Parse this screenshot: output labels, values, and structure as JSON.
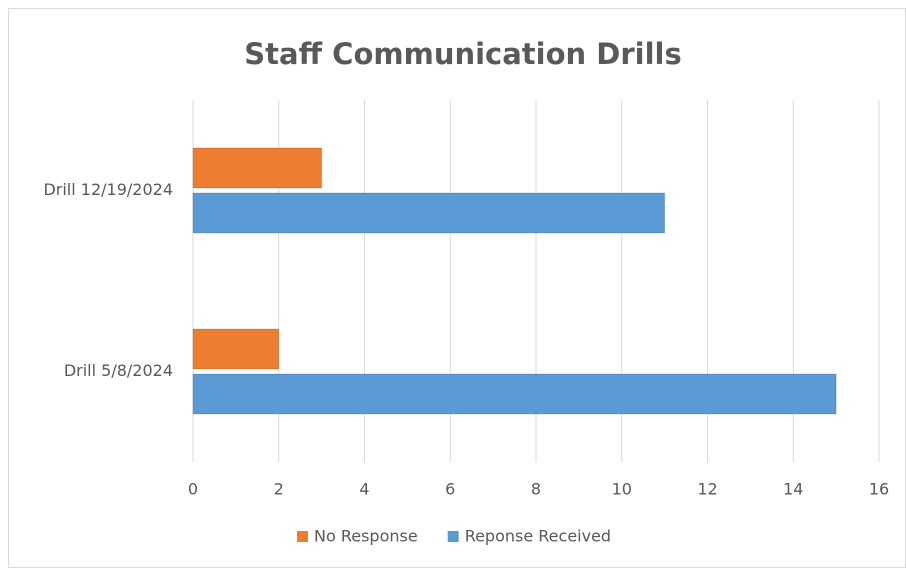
{
  "chart_data": {
    "type": "hbar",
    "title": "Staff Communication Drills",
    "categories": [
      "Drill 12/19/2024",
      "Drill 5/8/2024"
    ],
    "series": [
      {
        "name": "No Response",
        "color": "#ed7d31",
        "values": [
          3,
          2
        ]
      },
      {
        "name": "Reponse Received",
        "color": "#5b9bd5",
        "values": [
          11,
          15
        ]
      }
    ],
    "xlim": [
      0,
      16
    ],
    "xticks": [
      0,
      2,
      4,
      6,
      8,
      10,
      12,
      14,
      16
    ],
    "grid": true,
    "legend": "bottom"
  }
}
